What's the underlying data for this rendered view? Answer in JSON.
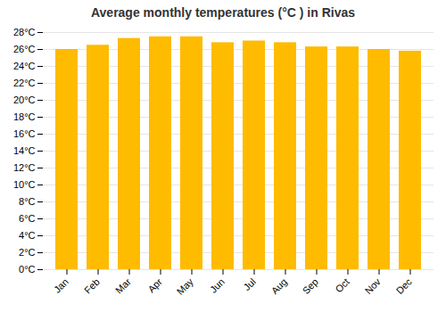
{
  "chart_data": {
    "type": "bar",
    "title": "Average monthly temperatures (°C ) in Rivas",
    "categories": [
      "Jan",
      "Feb",
      "Mar",
      "Apr",
      "May",
      "Jun",
      "Jul",
      "Aug",
      "Sep",
      "Oct",
      "Nov",
      "Dec"
    ],
    "values": [
      26.0,
      26.5,
      27.3,
      27.5,
      27.5,
      26.8,
      27.0,
      26.8,
      26.3,
      26.3,
      26.0,
      25.8
    ],
    "color": "#FFBB00",
    "ylim": [
      0,
      28
    ],
    "yticks": [
      {
        "value": 0,
        "label": "0°C"
      },
      {
        "value": 2,
        "label": "2°C"
      },
      {
        "value": 4,
        "label": "4°C"
      },
      {
        "value": 6,
        "label": "6°C"
      },
      {
        "value": 8,
        "label": "8°C"
      },
      {
        "value": 10,
        "label": "10°C"
      },
      {
        "value": 12,
        "label": "12°C"
      },
      {
        "value": 14,
        "label": "14°C"
      },
      {
        "value": 16,
        "label": "16°C"
      },
      {
        "value": 18,
        "label": "18°C"
      },
      {
        "value": 20,
        "label": "20°C"
      },
      {
        "value": 22,
        "label": "22°C"
      },
      {
        "value": 24,
        "label": "24°C"
      },
      {
        "value": 26,
        "label": "26°C"
      },
      {
        "value": 28,
        "label": "28°C"
      }
    ],
    "grid": true
  }
}
